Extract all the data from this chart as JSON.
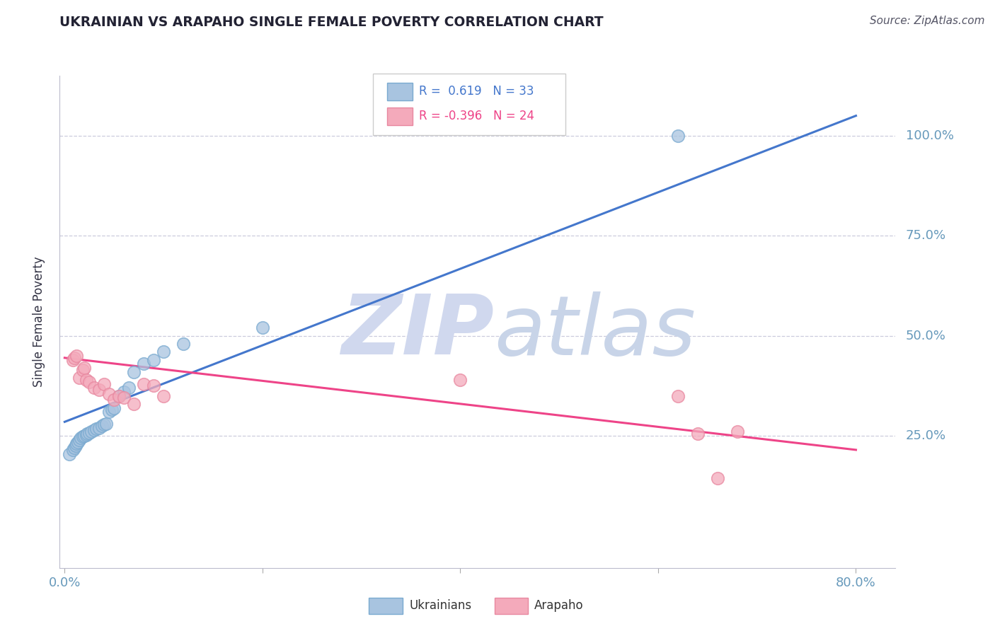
{
  "title": "UKRAINIAN VS ARAPAHO SINGLE FEMALE POVERTY CORRELATION CHART",
  "source": "Source: ZipAtlas.com",
  "ylabel": "Single Female Poverty",
  "ukrainian_R": 0.619,
  "ukrainian_N": 33,
  "arapaho_R": -0.396,
  "arapaho_N": 24,
  "blue_marker_color": "#A8C4E0",
  "blue_marker_edge": "#7AAAD0",
  "pink_marker_color": "#F4AABB",
  "pink_marker_edge": "#E888A0",
  "blue_line_color": "#4477CC",
  "pink_line_color": "#EE4488",
  "blue_text_color": "#4477CC",
  "pink_text_color": "#EE4488",
  "axis_color": "#6699BB",
  "grid_color": "#CCCCDD",
  "title_color": "#222233",
  "source_color": "#555566",
  "watermark_zip_color": "#D0D8EE",
  "watermark_atlas_color": "#C8D4E8",
  "xlim": [
    -0.005,
    0.84
  ],
  "ylim": [
    -0.08,
    1.15
  ],
  "blue_trend_x0": 0.0,
  "blue_trend_y0": 0.285,
  "blue_trend_x1": 0.8,
  "blue_trend_y1": 1.05,
  "pink_trend_x0": 0.0,
  "pink_trend_y0": 0.445,
  "pink_trend_x1": 0.8,
  "pink_trend_y1": 0.215,
  "ukrainian_x": [
    0.005,
    0.008,
    0.01,
    0.011,
    0.012,
    0.013,
    0.015,
    0.016,
    0.018,
    0.02,
    0.022,
    0.023,
    0.025,
    0.027,
    0.03,
    0.032,
    0.035,
    0.038,
    0.04,
    0.042,
    0.045,
    0.048,
    0.05,
    0.055,
    0.06,
    0.065,
    0.07,
    0.08,
    0.09,
    0.1,
    0.12,
    0.2,
    0.62
  ],
  "ukrainian_y": [
    0.205,
    0.215,
    0.22,
    0.225,
    0.23,
    0.235,
    0.24,
    0.245,
    0.248,
    0.25,
    0.252,
    0.255,
    0.258,
    0.26,
    0.265,
    0.268,
    0.27,
    0.275,
    0.278,
    0.28,
    0.31,
    0.315,
    0.32,
    0.35,
    0.36,
    0.37,
    0.41,
    0.43,
    0.44,
    0.46,
    0.48,
    0.52,
    1.0
  ],
  "arapaho_x": [
    0.008,
    0.01,
    0.012,
    0.015,
    0.018,
    0.02,
    0.022,
    0.025,
    0.03,
    0.035,
    0.04,
    0.045,
    0.05,
    0.055,
    0.06,
    0.07,
    0.08,
    0.09,
    0.1,
    0.4,
    0.62,
    0.64,
    0.66,
    0.68
  ],
  "arapaho_y": [
    0.44,
    0.445,
    0.45,
    0.395,
    0.415,
    0.42,
    0.39,
    0.385,
    0.37,
    0.365,
    0.38,
    0.355,
    0.34,
    0.35,
    0.345,
    0.33,
    0.38,
    0.375,
    0.35,
    0.39,
    0.35,
    0.255,
    0.145,
    0.26
  ]
}
